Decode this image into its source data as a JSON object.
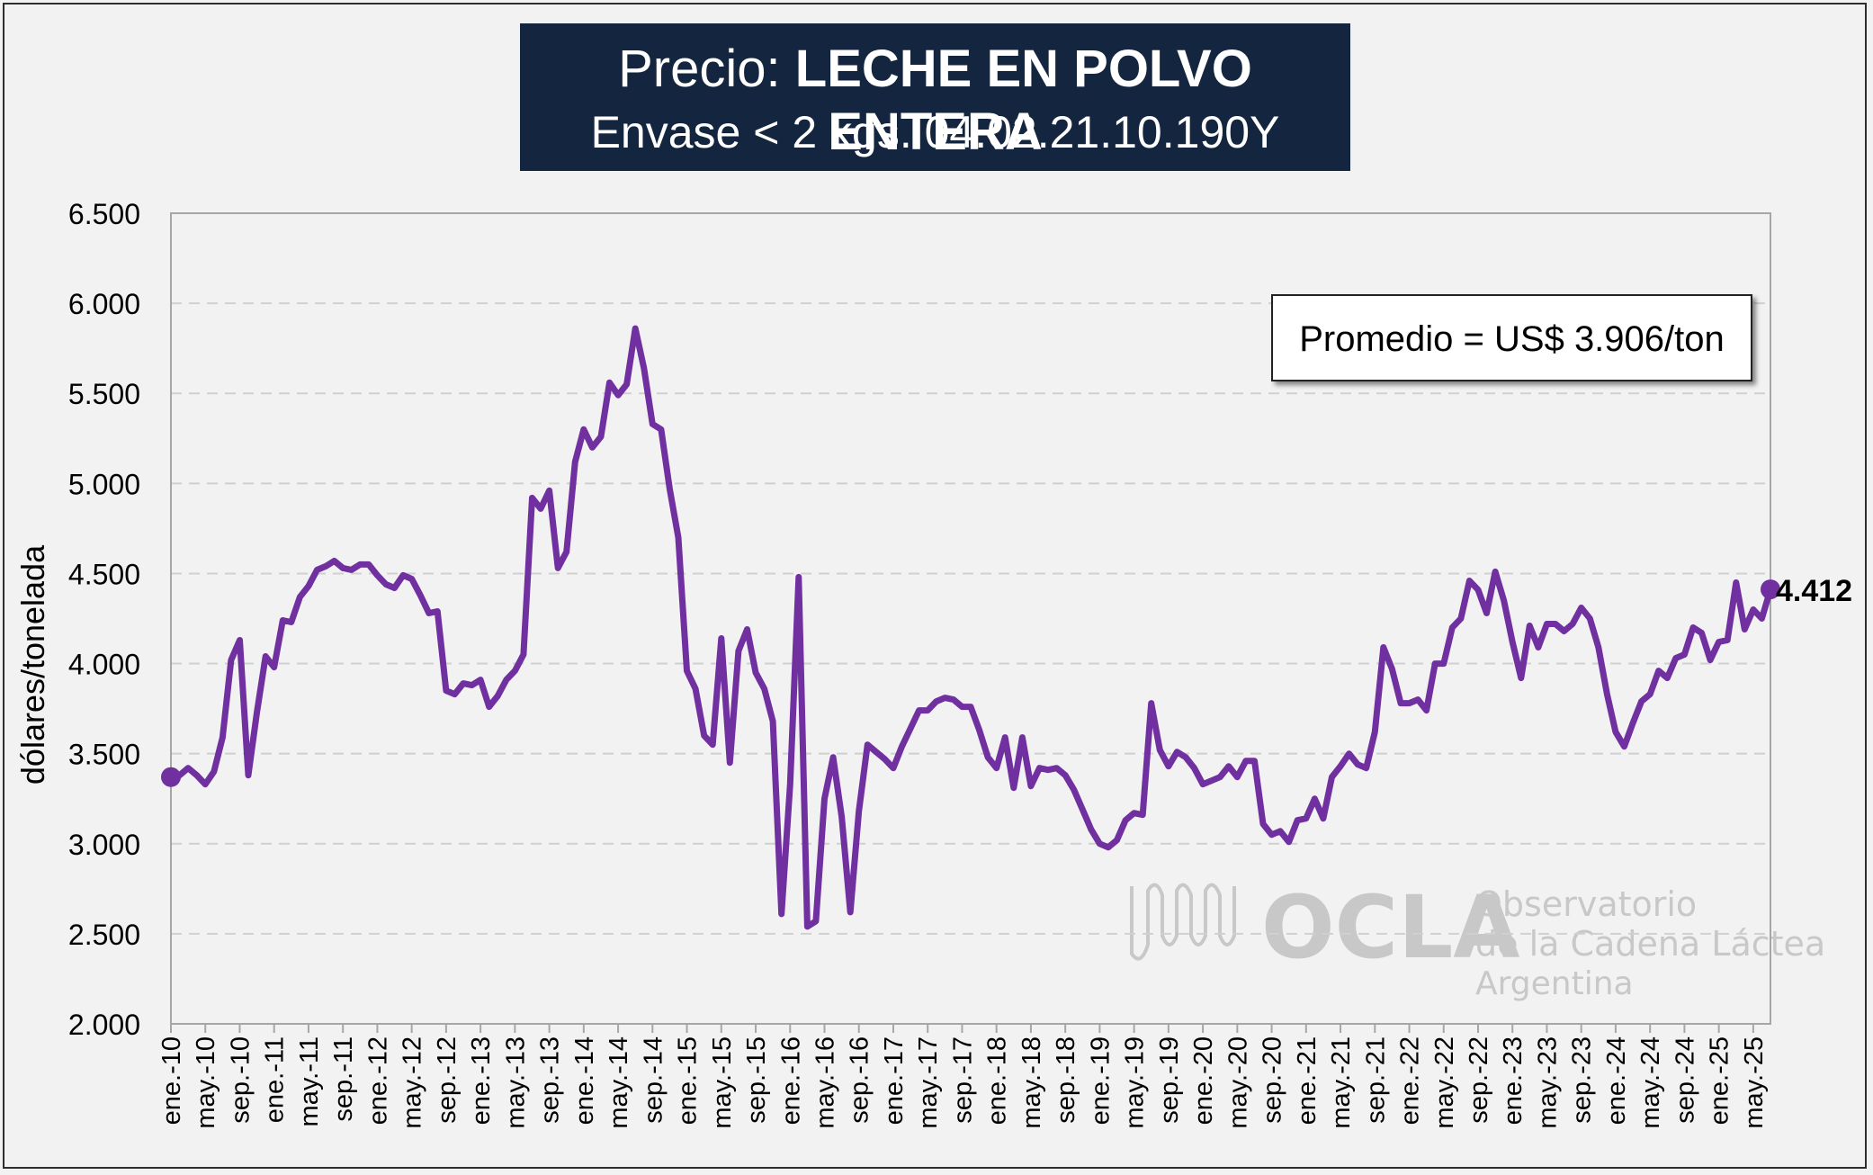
{
  "title": {
    "prefix": "Precio:",
    "bold": "LECHE EN POLVO ENTERA",
    "subtitle": "Envase < 2 kgs. 04.02.21.10.190Y"
  },
  "annotation": "Promedio = US$ 3.906/ton",
  "watermark": {
    "logo": "OCLA",
    "line1": "Observatorio",
    "line2": "de la Cadena Láctea",
    "line3": "Argentina"
  },
  "colors": {
    "line": "#7030a0",
    "title_bg": "#14263f",
    "grid": "#d0d0d0",
    "watermark": "#c8c8c8"
  },
  "chart_data": {
    "type": "line",
    "ylabel": "dólares/tonelada",
    "ylim": [
      2000,
      6500
    ],
    "yticks": [
      2000,
      2500,
      3000,
      3500,
      4000,
      4500,
      5000,
      5500,
      6000,
      6500
    ],
    "ytick_labels": [
      "2.000",
      "2.500",
      "3.000",
      "3.500",
      "4.000",
      "4.500",
      "5.000",
      "5.500",
      "6.000",
      "6.500"
    ],
    "grid": "horizontal dashed",
    "xtick_labels": [
      "ene.-10",
      "may.-10",
      "sep.-10",
      "ene.-11",
      "may.-11",
      "sep.-11",
      "ene.-12",
      "may.-12",
      "sep.-12",
      "ene.-13",
      "may.-13",
      "sep.-13",
      "ene.-14",
      "may.-14",
      "sep.-14",
      "ene.-15",
      "may.-15",
      "sep.-15",
      "ene.-16",
      "may.-16",
      "sep.-16",
      "ene.-17",
      "may.-17",
      "sep.-17",
      "ene.-18",
      "may.-18",
      "sep.-18",
      "ene.-19",
      "may.-19",
      "sep.-19",
      "ene.-20",
      "may.-20",
      "sep.-20",
      "ene.-21",
      "may.-21",
      "sep.-21",
      "ene.-22",
      "may.-22",
      "sep.-22",
      "ene.-23",
      "may.-23",
      "sep.-23",
      "ene.-24",
      "may.-24",
      "sep.-24",
      "ene.-25",
      "may.-25"
    ],
    "end_label": "4.412",
    "series": [
      {
        "start": "ene.-10",
        "values": [
          3370,
          3380,
          3420,
          3380,
          3330,
          3400,
          3590,
          4020,
          4130,
          3380,
          3730,
          4040,
          3980,
          4240,
          4230,
          4370,
          4430,
          4520,
          4540,
          4570,
          4530,
          4520,
          4550,
          4550,
          4490,
          4440,
          4420,
          4490,
          4470,
          4380,
          4280,
          4290,
          3850,
          3830,
          3890,
          3880,
          3910,
          3760,
          3820,
          3910,
          3960,
          4050,
          4920,
          4860,
          4960,
          4530,
          4620,
          5120,
          5300,
          5200,
          5260,
          5560,
          5490,
          5550,
          5860,
          5640,
          5330,
          5300,
          4970,
          4700,
          3960,
          3860,
          3600,
          3550,
          4140,
          3450,
          4070,
          4190,
          3950,
          3860,
          3680,
          2610,
          3330,
          4480,
          2540,
          2570,
          3250,
          3480,
          3150,
          2620,
          3180,
          3550,
          3510,
          3470,
          3420,
          3540,
          3640,
          3740,
          3740,
          3790,
          3810,
          3800,
          3760,
          3760,
          3630,
          3480,
          3420,
          3590,
          3310,
          3590,
          3320,
          3420,
          3410,
          3420,
          3380,
          3300,
          3190,
          3080,
          3000,
          2980,
          3020,
          3130,
          3170,
          3160,
          3780,
          3520,
          3430,
          3510,
          3480,
          3420,
          3330,
          3350,
          3370,
          3430,
          3370,
          3460,
          3460,
          3110,
          3050,
          3070,
          3010,
          3130,
          3140,
          3250,
          3140,
          3370,
          3430,
          3500,
          3440,
          3420,
          3620,
          4090,
          3970,
          3780,
          3780,
          3800,
          3740,
          4000,
          4000,
          4200,
          4250,
          4460,
          4410,
          4280,
          4510,
          4350,
          4120,
          3920,
          4210,
          4090,
          4220,
          4220,
          4180,
          4220,
          4310,
          4250,
          4090,
          3830,
          3620,
          3540,
          3670,
          3790,
          3830,
          3960,
          3920,
          4030,
          4050,
          4200,
          4170,
          4020,
          4120,
          4130,
          4450,
          4190,
          4300,
          4250,
          4412
        ]
      }
    ]
  }
}
